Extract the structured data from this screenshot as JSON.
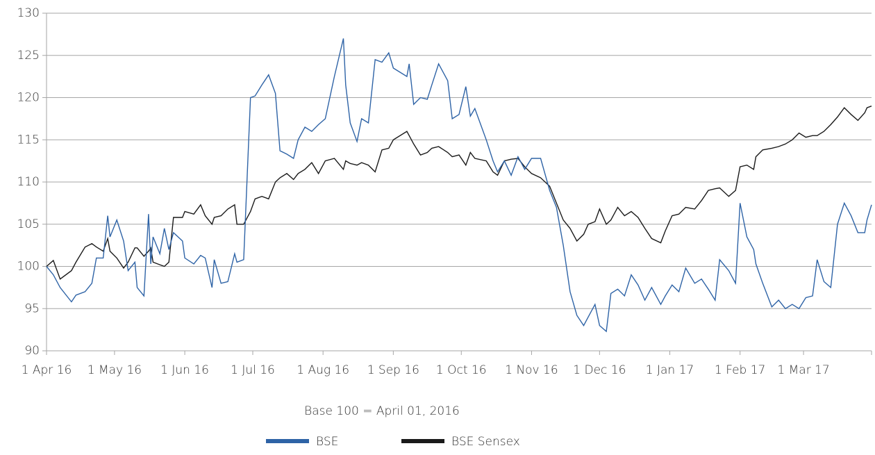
{
  "chart_data": {
    "type": "line",
    "note": "Base 100 = April 01, 2016",
    "x": [
      "2016-04-01",
      "2016-04-04",
      "2016-04-07",
      "2016-04-12",
      "2016-04-14",
      "2016-04-18",
      "2016-04-21",
      "2016-04-23",
      "2016-04-26",
      "2016-04-28",
      "2016-04-29",
      "2016-05-02",
      "2016-05-05",
      "2016-05-07",
      "2016-05-10",
      "2016-05-11",
      "2016-05-14",
      "2016-05-16",
      "2016-05-17",
      "2016-05-18",
      "2016-05-21",
      "2016-05-23",
      "2016-05-25",
      "2016-05-27",
      "2016-05-31",
      "2016-06-01",
      "2016-06-05",
      "2016-06-08",
      "2016-06-10",
      "2016-06-13",
      "2016-06-14",
      "2016-06-17",
      "2016-06-20",
      "2016-06-23",
      "2016-06-24",
      "2016-06-27",
      "2016-06-30",
      "2016-07-02",
      "2016-07-05",
      "2016-07-08",
      "2016-07-11",
      "2016-07-13",
      "2016-07-16",
      "2016-07-19",
      "2016-07-21",
      "2016-07-24",
      "2016-07-27",
      "2016-07-30",
      "2016-08-02",
      "2016-08-06",
      "2016-08-10",
      "2016-08-11",
      "2016-08-13",
      "2016-08-16",
      "2016-08-18",
      "2016-08-21",
      "2016-08-24",
      "2016-08-27",
      "2016-08-30",
      "2016-09-01",
      "2016-09-07",
      "2016-09-08",
      "2016-09-10",
      "2016-09-13",
      "2016-09-16",
      "2016-09-18",
      "2016-09-21",
      "2016-09-25",
      "2016-09-27",
      "2016-09-30",
      "2016-10-03",
      "2016-10-05",
      "2016-10-07",
      "2016-10-12",
      "2016-10-15",
      "2016-10-17",
      "2016-10-20",
      "2016-10-23",
      "2016-10-26",
      "2016-10-29",
      "2016-11-01",
      "2016-11-05",
      "2016-11-09",
      "2016-11-12",
      "2016-11-15",
      "2016-11-18",
      "2016-11-21",
      "2016-11-24",
      "2016-11-26",
      "2016-11-29",
      "2016-12-01",
      "2016-12-04",
      "2016-12-06",
      "2016-12-09",
      "2016-12-12",
      "2016-12-15",
      "2016-12-18",
      "2016-12-21",
      "2016-12-24",
      "2016-12-28",
      "2016-12-30",
      "2017-01-02",
      "2017-01-05",
      "2017-01-08",
      "2017-01-12",
      "2017-01-15",
      "2017-01-18",
      "2017-01-21",
      "2017-01-23",
      "2017-01-27",
      "2017-01-30",
      "2017-02-01",
      "2017-02-04",
      "2017-02-07",
      "2017-02-08",
      "2017-02-11",
      "2017-02-15",
      "2017-02-18",
      "2017-02-21",
      "2017-02-24",
      "2017-02-27",
      "2017-03-02",
      "2017-03-05",
      "2017-03-07",
      "2017-03-10",
      "2017-03-13",
      "2017-03-16",
      "2017-03-19",
      "2017-03-22",
      "2017-03-25",
      "2017-03-28",
      "2017-03-29",
      "2017-03-31"
    ],
    "series": [
      {
        "name": "BSE",
        "color": "#2e63a6",
        "values": [
          100,
          99,
          97.5,
          95.8,
          96.6,
          97,
          98,
          101,
          101,
          106,
          103.5,
          105.5,
          103,
          99.5,
          100.5,
          97.5,
          96.5,
          106.2,
          100.3,
          103.5,
          101.5,
          104.5,
          102,
          104,
          103,
          101,
          100.3,
          101.3,
          101,
          97.5,
          100.8,
          98,
          98.2,
          101.5,
          100.5,
          100.8,
          120,
          120.2,
          121.5,
          122.7,
          120.5,
          113.7,
          113.3,
          112.8,
          115,
          116.5,
          116,
          116.8,
          117.5,
          122.5,
          127,
          121.5,
          117,
          114.8,
          117.5,
          117,
          124.5,
          124.2,
          125.3,
          123.5,
          122.5,
          124,
          119.2,
          120,
          119.8,
          121.5,
          124,
          122,
          117.5,
          118,
          121.3,
          117.8,
          118.7,
          115,
          112.5,
          111.2,
          112.5,
          110.8,
          113,
          111.5,
          112.8,
          112.8,
          109,
          107,
          102.5,
          97,
          94.2,
          93,
          94,
          95.5,
          93,
          92.3,
          96.8,
          97.3,
          96.5,
          99,
          97.8,
          96,
          97.5,
          95.5,
          96.5,
          97.8,
          97,
          99.8,
          98,
          98.5,
          97.3,
          96,
          100.8,
          99.5,
          98,
          107.5,
          103.5,
          102,
          100.3,
          98,
          95.2,
          96,
          95,
          95.5,
          95,
          96.3,
          96.5,
          100.8,
          98.2,
          97.5,
          105,
          107.5,
          106,
          104,
          104,
          105.5,
          107.3
        ]
      },
      {
        "name": "BSE Sensex",
        "color": "#1a1a1a",
        "values": [
          100,
          100.7,
          98.5,
          99.5,
          100.5,
          102.3,
          102.7,
          102.3,
          101.8,
          103.3,
          101.8,
          101,
          99.8,
          100.5,
          102.2,
          102.2,
          101.2,
          101.8,
          102.2,
          100.5,
          100.2,
          100,
          100.5,
          105.8,
          105.8,
          106.5,
          106.2,
          107.3,
          106,
          105,
          105.8,
          106,
          106.8,
          107.3,
          105,
          105,
          106.5,
          108,
          108.3,
          108,
          110,
          110.5,
          111,
          110.3,
          111,
          111.5,
          112.3,
          111,
          112.5,
          112.8,
          111.5,
          112.5,
          112.2,
          112,
          112.3,
          112,
          111.2,
          113.8,
          114,
          115,
          116,
          115.5,
          114.5,
          113.2,
          113.5,
          114,
          114.2,
          113.5,
          113,
          113.2,
          112,
          113.5,
          112.8,
          112.5,
          111.2,
          110.8,
          112.5,
          112.7,
          112.8,
          111.8,
          111,
          110.5,
          109.5,
          107.5,
          105.5,
          104.5,
          103,
          103.8,
          105,
          105.3,
          106.8,
          105,
          105.5,
          107,
          106,
          106.5,
          105.8,
          104.5,
          103.3,
          102.8,
          104.2,
          106,
          106.2,
          107,
          106.8,
          107.8,
          109,
          109.2,
          109.3,
          108.3,
          109,
          111.8,
          112,
          111.5,
          113,
          113.8,
          114,
          114.2,
          114.5,
          115,
          115.8,
          115.3,
          115.5,
          115.5,
          116,
          116.8,
          117.7,
          118.8,
          118,
          117.3,
          118.2,
          118.8,
          119
        ]
      }
    ],
    "xlim": [
      "2016-04-01",
      "2017-03-31"
    ],
    "xticks": [
      {
        "value": "2016-04-01",
        "label": "1 Apr 16"
      },
      {
        "value": "2016-05-01",
        "label": "1 May 16"
      },
      {
        "value": "2016-06-01",
        "label": "1 Jun 16"
      },
      {
        "value": "2016-07-01",
        "label": "1 Jul 16"
      },
      {
        "value": "2016-08-01",
        "label": "1 Aug 16"
      },
      {
        "value": "2016-09-01",
        "label": "1 Sep 16"
      },
      {
        "value": "2016-10-01",
        "label": "1 Oct 16"
      },
      {
        "value": "2016-11-01",
        "label": "1 Nov 16"
      },
      {
        "value": "2016-12-01",
        "label": "1 Dec 16"
      },
      {
        "value": "2017-01-01",
        "label": "1 Jan 17"
      },
      {
        "value": "2017-02-01",
        "label": "1 Feb 17"
      },
      {
        "value": "2017-03-01",
        "label": "1 Mar 17"
      }
    ],
    "ylim": [
      90,
      130
    ],
    "yticks": [
      90,
      95,
      100,
      105,
      110,
      115,
      120,
      125,
      130
    ],
    "grid": true,
    "legend": "bottom"
  }
}
